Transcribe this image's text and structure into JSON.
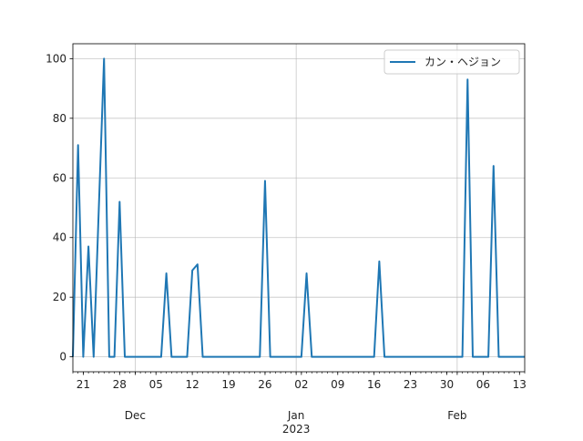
{
  "chart_data": {
    "type": "line",
    "title": "",
    "xlabel": "",
    "ylabel": "",
    "grid": true,
    "legend_position": "top-right",
    "x_range": [
      "2022-11-19",
      "2023-02-14"
    ],
    "ylim": [
      -5,
      105
    ],
    "y_ticks": [
      0,
      20,
      40,
      60,
      80,
      100
    ],
    "x_tick_labels": [
      {
        "date": "2022-11-21",
        "label": "21"
      },
      {
        "date": "2022-11-28",
        "label": "28"
      },
      {
        "date": "2022-12-05",
        "label": "05"
      },
      {
        "date": "2022-12-12",
        "label": "12"
      },
      {
        "date": "2022-12-19",
        "label": "19"
      },
      {
        "date": "2022-12-26",
        "label": "26"
      },
      {
        "date": "2023-01-02",
        "label": "02"
      },
      {
        "date": "2023-01-09",
        "label": "09"
      },
      {
        "date": "2023-01-16",
        "label": "16"
      },
      {
        "date": "2023-01-23",
        "label": "23"
      },
      {
        "date": "2023-01-30",
        "label": "30"
      },
      {
        "date": "2023-02-06",
        "label": "06"
      },
      {
        "date": "2023-02-13",
        "label": "13"
      }
    ],
    "month_labels": [
      {
        "date": "2022-12-01",
        "label": "Dec"
      },
      {
        "date": "2023-01-01",
        "label": "Jan"
      },
      {
        "date": "2023-02-01",
        "label": "Feb"
      }
    ],
    "year_label": {
      "date": "2023-01-01",
      "label": "2023"
    },
    "series": [
      {
        "name": "カン・ヘジョン",
        "color": "#1f77b4",
        "points": [
          {
            "x": "2022-11-19",
            "y": 0
          },
          {
            "x": "2022-11-20",
            "y": 71
          },
          {
            "x": "2022-11-21",
            "y": 0
          },
          {
            "x": "2022-11-22",
            "y": 37
          },
          {
            "x": "2022-11-23",
            "y": 0
          },
          {
            "x": "2022-11-25",
            "y": 100
          },
          {
            "x": "2022-11-26",
            "y": 0
          },
          {
            "x": "2022-11-27",
            "y": 0
          },
          {
            "x": "2022-11-28",
            "y": 52
          },
          {
            "x": "2022-11-29",
            "y": 0
          },
          {
            "x": "2022-12-06",
            "y": 0
          },
          {
            "x": "2022-12-07",
            "y": 28
          },
          {
            "x": "2022-12-08",
            "y": 0
          },
          {
            "x": "2022-12-11",
            "y": 0
          },
          {
            "x": "2022-12-12",
            "y": 29
          },
          {
            "x": "2022-12-13",
            "y": 31
          },
          {
            "x": "2022-12-14",
            "y": 0
          },
          {
            "x": "2022-12-25",
            "y": 0
          },
          {
            "x": "2022-12-26",
            "y": 59
          },
          {
            "x": "2022-12-27",
            "y": 0
          },
          {
            "x": "2023-01-02",
            "y": 0
          },
          {
            "x": "2023-01-03",
            "y": 28
          },
          {
            "x": "2023-01-04",
            "y": 0
          },
          {
            "x": "2023-01-16",
            "y": 0
          },
          {
            "x": "2023-01-17",
            "y": 32
          },
          {
            "x": "2023-01-18",
            "y": 0
          },
          {
            "x": "2023-02-02",
            "y": 0
          },
          {
            "x": "2023-02-03",
            "y": 93
          },
          {
            "x": "2023-02-04",
            "y": 0
          },
          {
            "x": "2023-02-07",
            "y": 0
          },
          {
            "x": "2023-02-08",
            "y": 64
          },
          {
            "x": "2023-02-09",
            "y": 0
          },
          {
            "x": "2023-02-14",
            "y": 0
          }
        ]
      }
    ]
  }
}
